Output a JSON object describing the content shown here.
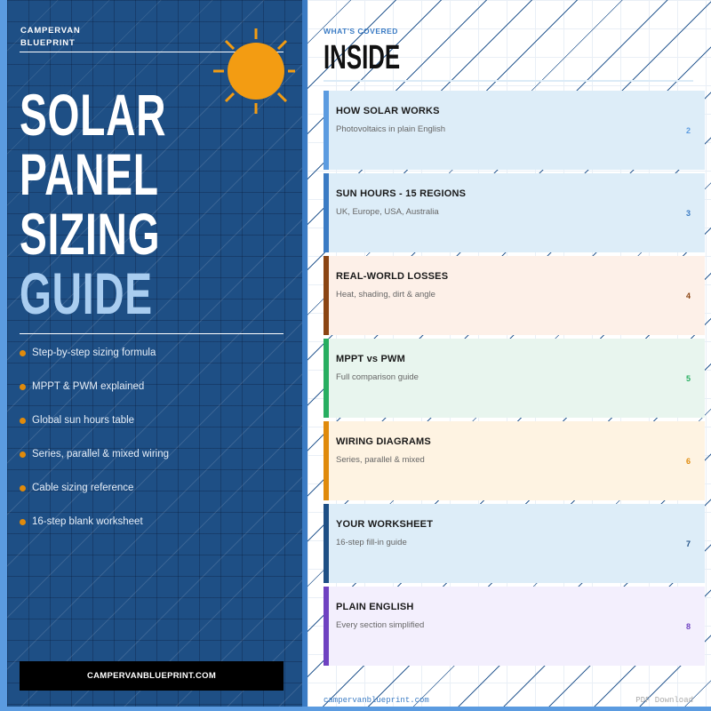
{
  "left": {
    "brand": [
      "CAMPERVAN",
      "BLUEPRINT"
    ],
    "title": [
      "SOLAR",
      "PANEL",
      "SIZING",
      "GUIDE"
    ],
    "bullets": [
      "Step-by-step sizing formula",
      "MPPT & PWM explained",
      "Global sun hours table",
      "Series, parallel & mixed wiring",
      "Cable sizing reference",
      "16-step blank worksheet"
    ],
    "cta": "CAMPERVANBLUEPRINT.COM",
    "icon": "sun-icon"
  },
  "right": {
    "kicker": "WHAT'S COVERED",
    "heading": "INSIDE",
    "cards": [
      {
        "title": "HOW SOLAR WORKS",
        "subtitle": "Photovoltaics in plain English",
        "page": "2",
        "accent": "#5b9be0",
        "bg": "#ddedf8"
      },
      {
        "title": "SUN HOURS - 15 REGIONS",
        "subtitle": "UK, Europe, USA, Australia",
        "page": "3",
        "accent": "#3a7bc4",
        "bg": "#ddedf8"
      },
      {
        "title": "REAL-WORLD LOSSES",
        "subtitle": "Heat, shading, dirt & angle",
        "page": "4",
        "accent": "#8b4513",
        "bg": "#fdf0e8"
      },
      {
        "title": "MPPT vs PWM",
        "subtitle": "Full comparison guide",
        "page": "5",
        "accent": "#27ae60",
        "bg": "#e8f5ee"
      },
      {
        "title": "WIRING DIAGRAMS",
        "subtitle": "Series, parallel & mixed",
        "page": "6",
        "accent": "#e08a0b",
        "bg": "#fef3e2"
      },
      {
        "title": "YOUR WORKSHEET",
        "subtitle": "16-step fill-in guide",
        "page": "7",
        "accent": "#1e4f85",
        "bg": "#ddedf8"
      },
      {
        "title": "PLAIN ENGLISH",
        "subtitle": "Every section simplified",
        "page": "8",
        "accent": "#6f42c1",
        "bg": "#f3effd"
      }
    ],
    "footer_left": "campervanblueprint.com",
    "footer_right": "PDF Download"
  }
}
